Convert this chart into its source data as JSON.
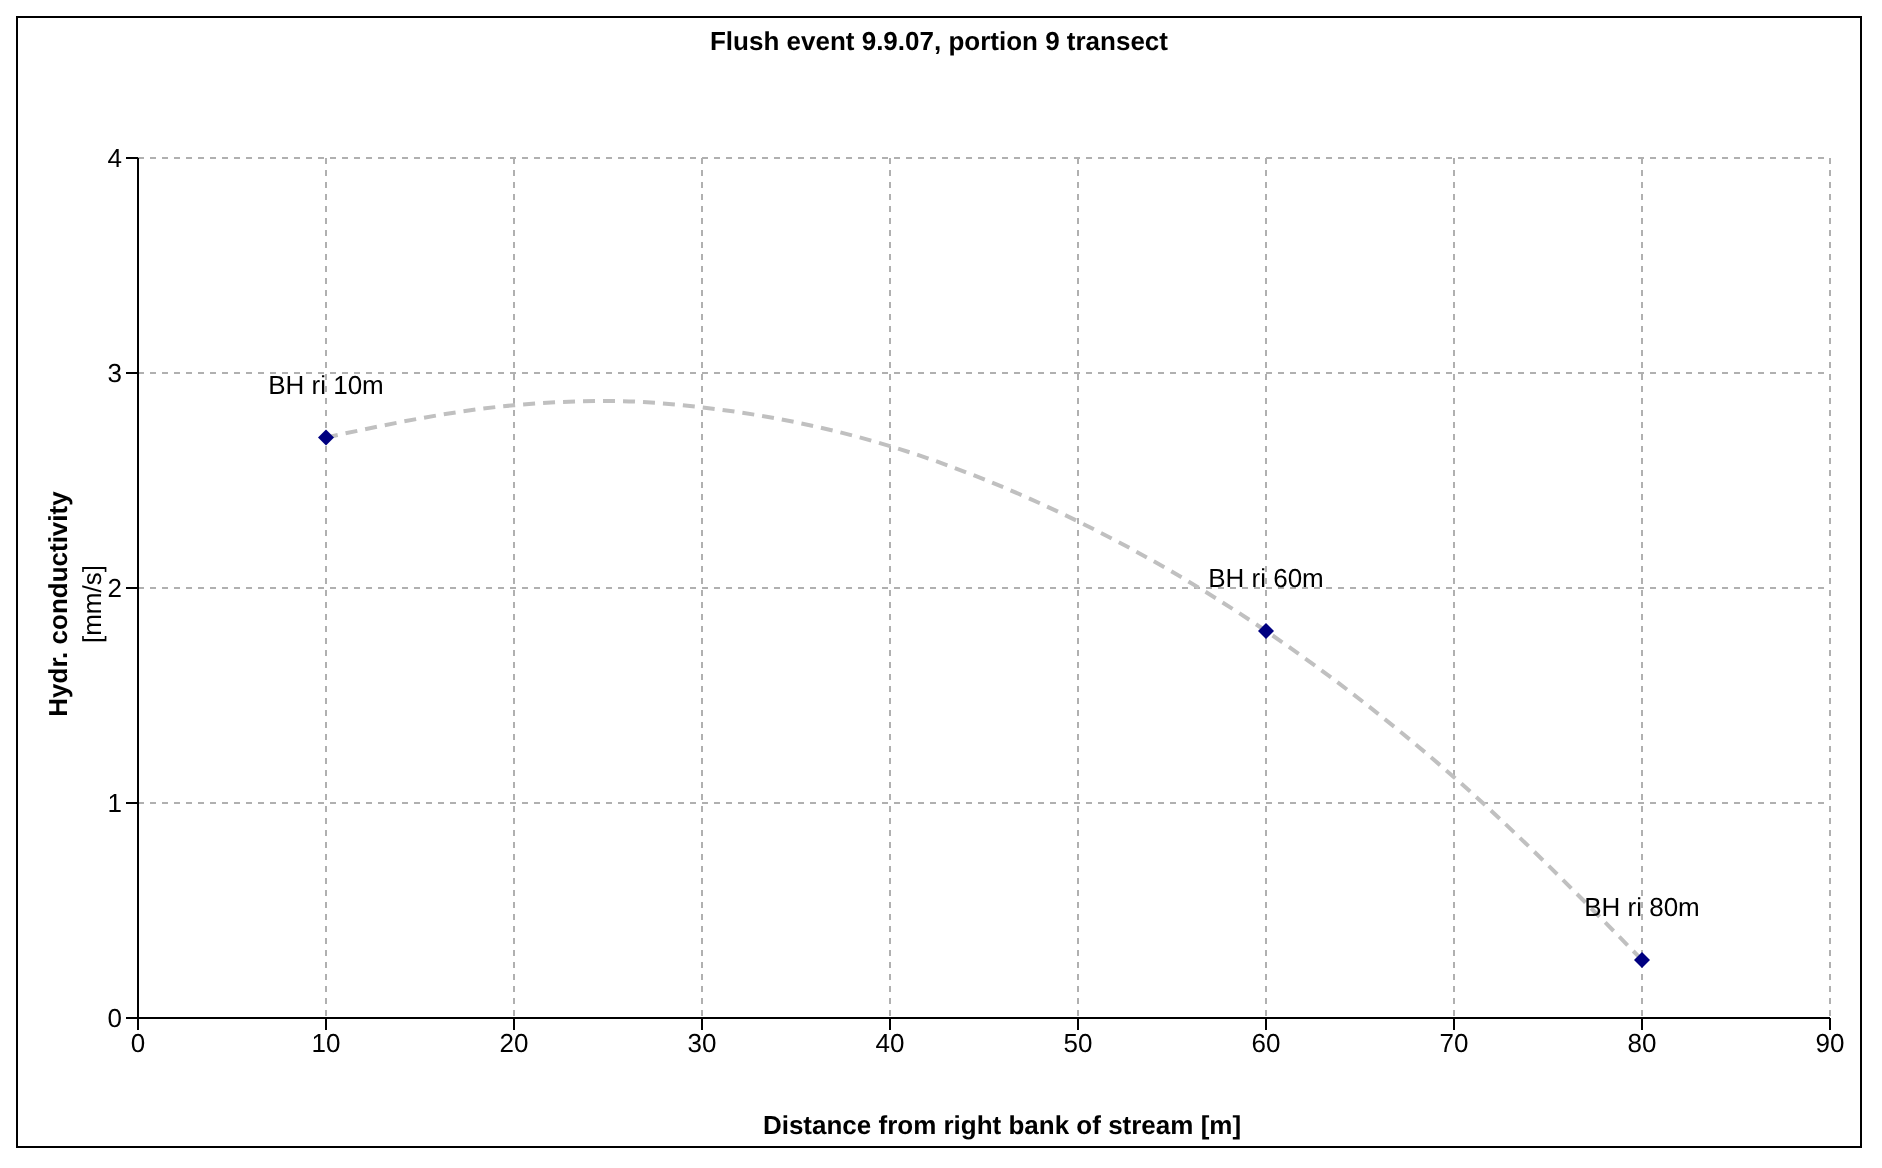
{
  "chart_data": {
    "type": "scatter",
    "title": "Flush event 9.9.07, portion 9 transect",
    "xlabel": "Distance from right bank of stream [m]",
    "ylabel": "Hydr. conductivity\n[mm/s]",
    "series": [
      {
        "color": "#000080",
        "x": [
          10,
          60,
          80
        ],
        "values": [
          2.7,
          1.8,
          0.27
        ],
        "marker": "diamond"
      },
      {
        "type": "line",
        "color": "#c0c0c0",
        "line_style": "dashed",
        "marker": "none",
        "x": [
          10,
          20,
          25,
          30,
          40,
          50,
          60,
          70,
          80
        ],
        "values": [
          2.7,
          2.85,
          2.87,
          2.84,
          2.66,
          2.31,
          1.8,
          1.12,
          0.27
        ]
      }
    ],
    "annotations": [
      {
        "text": "BH ri 10m",
        "x": 10,
        "y": 2.7
      },
      {
        "text": "BH ri 60m",
        "x": 60,
        "y": 1.8
      },
      {
        "text": "BH ri 80m",
        "x": 80,
        "y": 0.27
      }
    ],
    "xlim": [
      0,
      90
    ],
    "xticks": [
      0,
      10,
      20,
      30,
      40,
      50,
      60,
      70,
      80,
      90
    ],
    "ylim": [
      0,
      4
    ],
    "yticks": [
      0,
      1,
      2,
      3,
      4
    ],
    "grid": true,
    "legend": false
  }
}
